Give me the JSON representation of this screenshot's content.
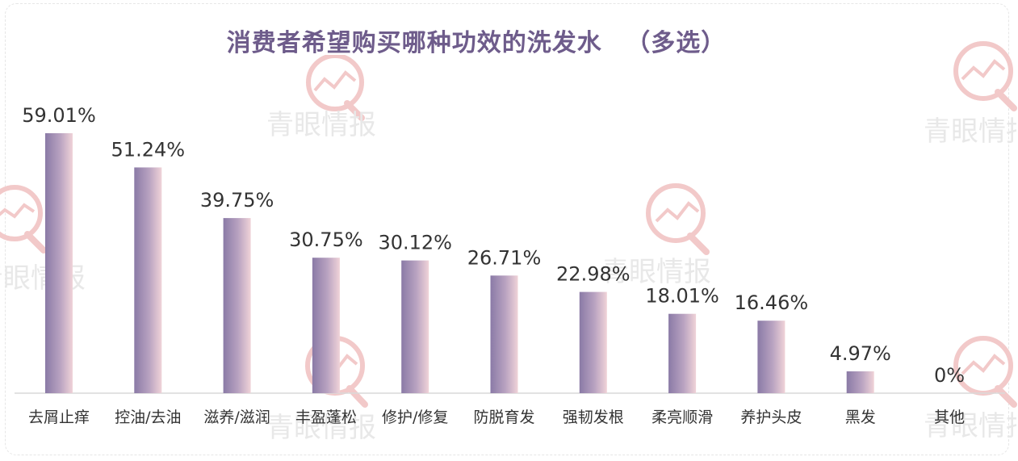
{
  "title": "消费者希望购买哪种功效的洗发水",
  "title_note": "（多选）",
  "watermark_text": "青眼情报",
  "chart_data": {
    "type": "bar",
    "title": "消费者希望购买哪种功效的洗发水 （多选）",
    "categories": [
      "去屑止痒",
      "控油/去油",
      "滋养/滋润",
      "丰盈蓬松",
      "修护/修复",
      "防脱育发",
      "强韧发根",
      "柔亮顺滑",
      "养护头皮",
      "黑发",
      "其他"
    ],
    "values": [
      59.01,
      51.24,
      39.75,
      30.75,
      30.12,
      26.71,
      22.98,
      18.01,
      16.46,
      4.97,
      0
    ],
    "data_labels": [
      "59.01%",
      "51.24%",
      "39.75%",
      "30.75%",
      "30.12%",
      "26.71%",
      "22.98%",
      "18.01%",
      "16.46%",
      "4.97%",
      "0%"
    ],
    "xlabel": "",
    "ylabel": "",
    "ylim": [
      0,
      60
    ],
    "grid": false,
    "legend": "none",
    "colors": {
      "bar_left": "#8a7aa6",
      "bar_right": "#f0d3d8",
      "axis": "#d9d9d9",
      "label": "#333333",
      "title": "#6e5c8b",
      "watermark": "#f2c9c9"
    }
  }
}
